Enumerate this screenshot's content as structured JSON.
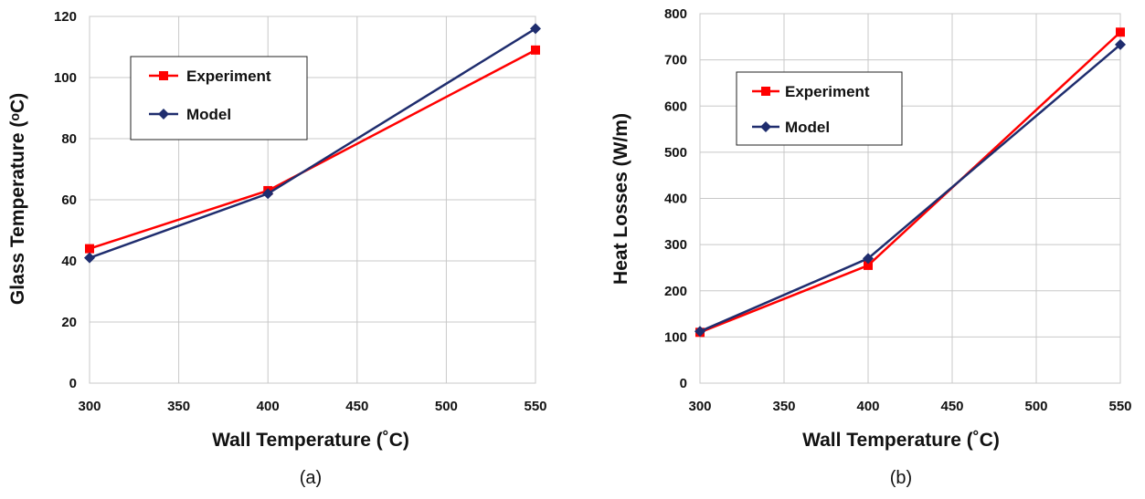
{
  "chart_data": [
    {
      "type": "line",
      "x": [
        300,
        400,
        550
      ],
      "xlabel": "Wall Temperature (˚C)",
      "ylabel": "Glass Temperature (ᵒC)",
      "xlim": [
        300,
        550
      ],
      "ylim": [
        0,
        120
      ],
      "xticks": [
        "300",
        "350",
        "400",
        "450",
        "500",
        "550"
      ],
      "yticks": [
        "0",
        "20",
        "40",
        "60",
        "80",
        "100",
        "120"
      ],
      "grid": true,
      "legend_position": "upper-left",
      "caption": "(a)",
      "series": [
        {
          "name": "Experiment",
          "color": "#ff0000",
          "marker": "square",
          "values": [
            44,
            63,
            109
          ]
        },
        {
          "name": "Model",
          "color": "#1f2d6e",
          "marker": "diamond",
          "values": [
            41,
            62,
            116
          ]
        }
      ]
    },
    {
      "type": "line",
      "x": [
        300,
        400,
        550
      ],
      "xlabel": "Wall Temperature (˚C)",
      "ylabel": "Heat Losses (W/m)",
      "xlim": [
        300,
        550
      ],
      "ylim": [
        0,
        800
      ],
      "xticks": [
        "300",
        "350",
        "400",
        "450",
        "500",
        "550"
      ],
      "yticks": [
        "0",
        "100",
        "200",
        "300",
        "400",
        "500",
        "600",
        "700",
        "800"
      ],
      "grid": true,
      "legend_position": "upper-left",
      "caption": "(b)",
      "series": [
        {
          "name": "Experiment",
          "color": "#ff0000",
          "marker": "square",
          "values": [
            110,
            255,
            760
          ]
        },
        {
          "name": "Model",
          "color": "#1f2d6e",
          "marker": "diamond",
          "values": [
            112,
            270,
            733
          ]
        }
      ]
    }
  ]
}
